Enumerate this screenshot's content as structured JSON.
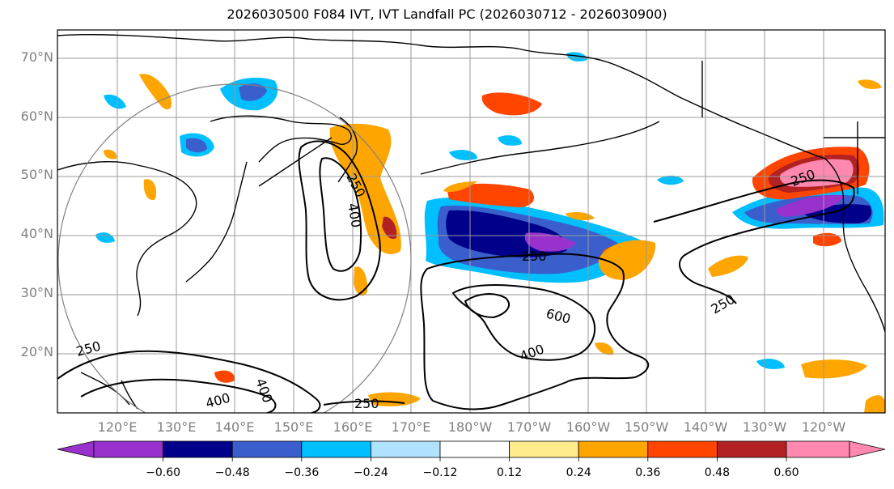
{
  "title": "2026030500 F084 IVT, IVT Landfall PC (2026030712 - 2026030900)",
  "lat_labels": [
    "70°N",
    "60°N",
    "50°N",
    "40°N",
    "30°N",
    "20°N"
  ],
  "lon_labels": [
    "120°E",
    "130°E",
    "140°E",
    "150°E",
    "160°E",
    "170°E",
    "180°W",
    "170°W",
    "160°W",
    "150°W",
    "140°W",
    "130°W",
    "120°W"
  ],
  "contour_labels": [
    "250",
    "400",
    "250",
    "600",
    "400",
    "250",
    "250",
    "400",
    "400",
    "250",
    "250"
  ],
  "colorbar": {
    "tick_labels": [
      "−0.60",
      "−0.48",
      "−0.36",
      "−0.24",
      "−0.12",
      "0.12",
      "0.24",
      "0.36",
      "0.48",
      "0.60"
    ],
    "colors": [
      "#9932cc",
      "#00008b",
      "#3a5fcd",
      "#00bfff",
      "#b0e2ff",
      "#ffffff",
      "#ffeb8c",
      "#ffa500",
      "#ff4500",
      "#b22222",
      "#ff88b0"
    ]
  }
}
